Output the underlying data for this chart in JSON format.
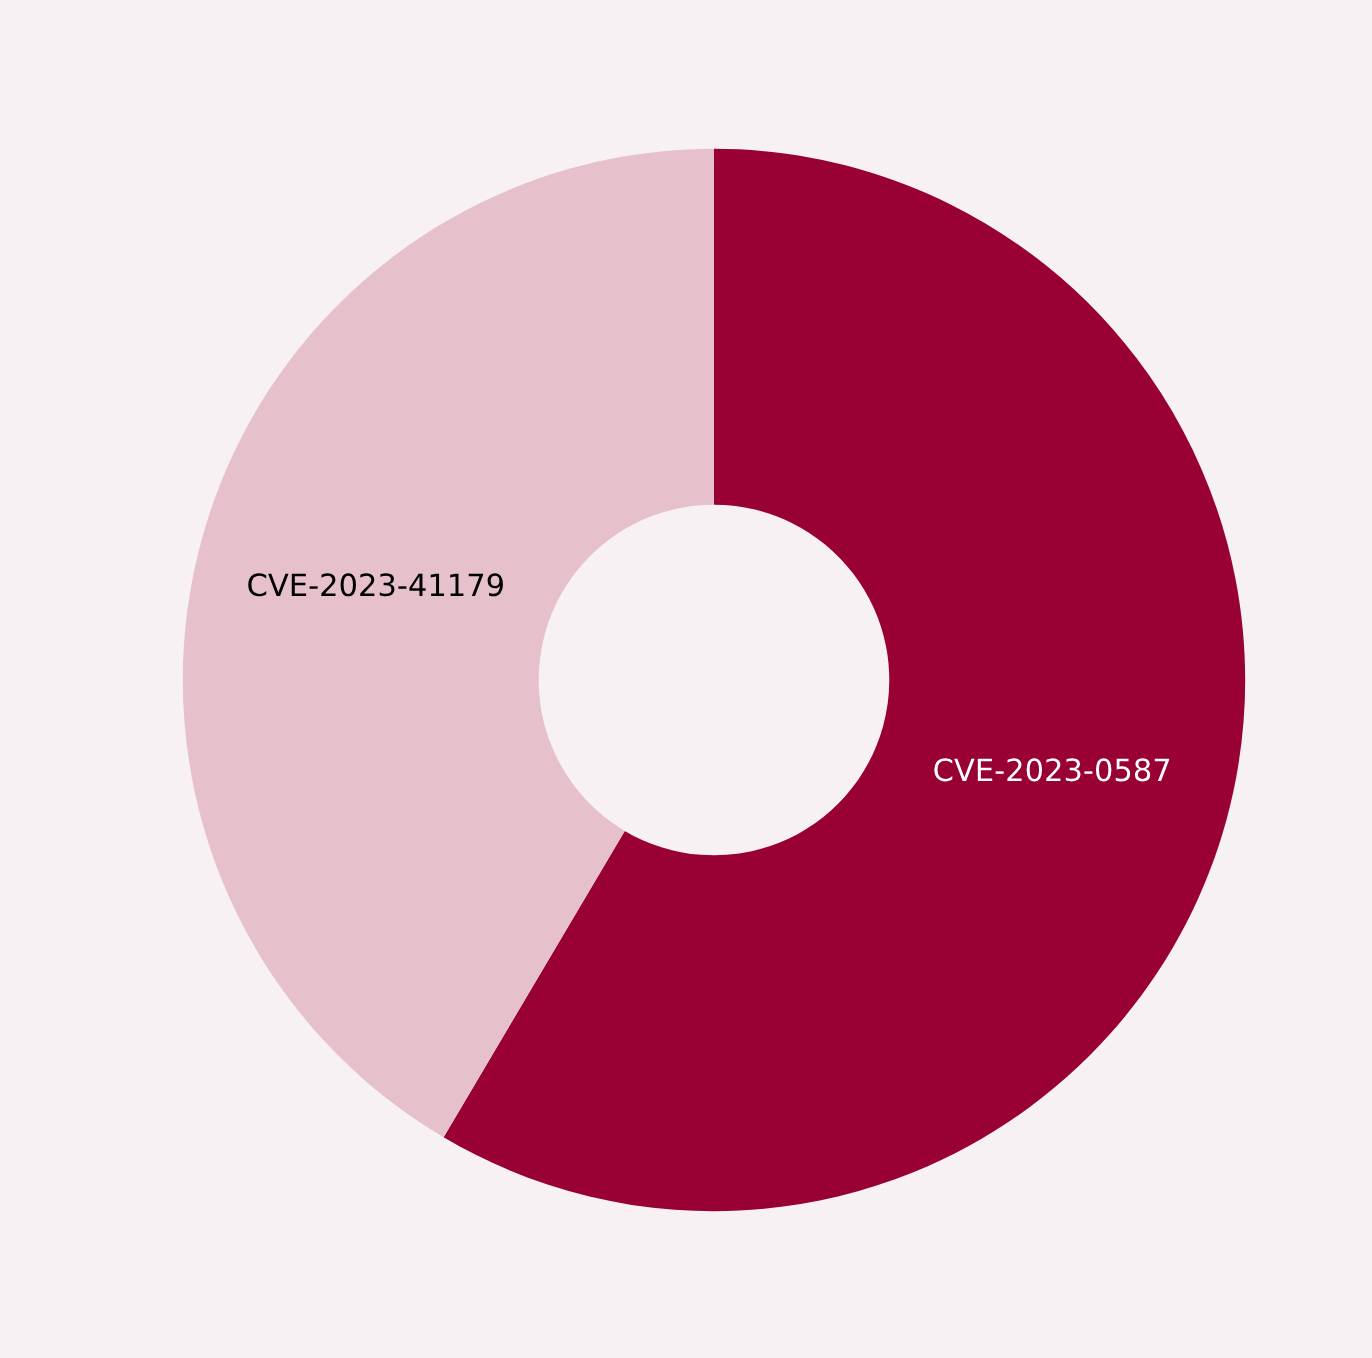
{
  "chart_data": {
    "type": "donut",
    "categories": [
      "CVE-2023-0587",
      "CVE-2023-41179"
    ],
    "values": [
      58.5,
      41.5
    ],
    "colors": [
      "#990033",
      "#e6c1cc"
    ]
  }
}
